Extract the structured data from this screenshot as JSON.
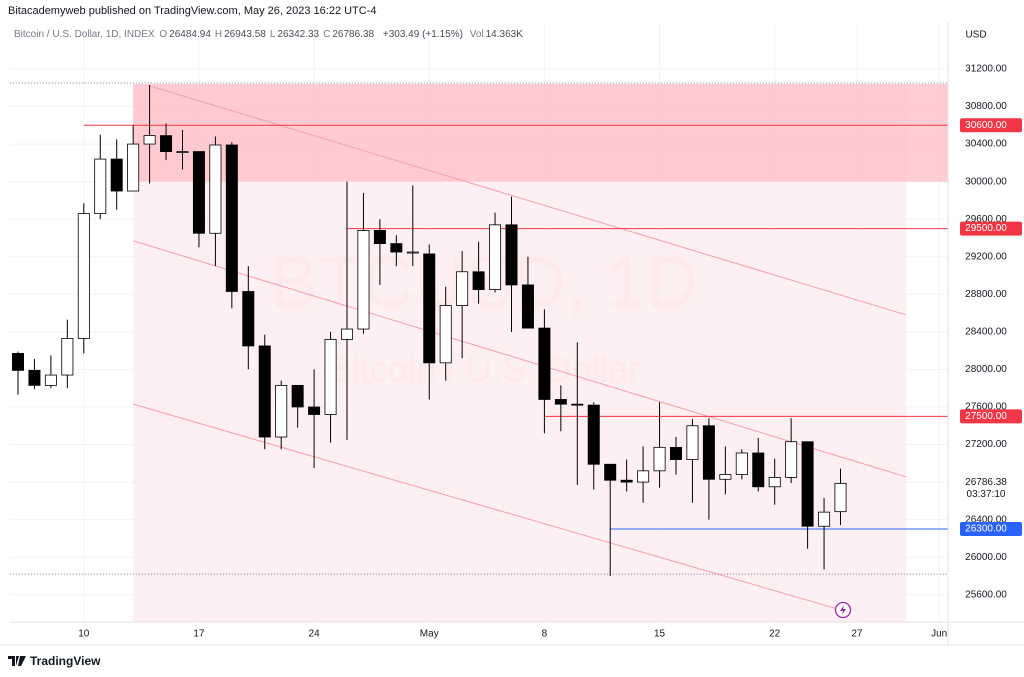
{
  "header": {
    "published": "Bitacademyweb published on TradingView.com, May 26, 2023 16:22 UTC-4"
  },
  "legend": {
    "symbol": "Bitcoin / U.S. Dollar, 1D, INDEX",
    "items": [
      {
        "key": "O",
        "value": "26484.94"
      },
      {
        "key": "H",
        "value": "26943.58"
      },
      {
        "key": "L",
        "value": "26342.33"
      },
      {
        "key": "C",
        "value": "26786.38"
      }
    ],
    "change": "+303.49 (+1.15%)",
    "volume": {
      "key": "Vol",
      "value": "14.363K"
    }
  },
  "footer": {
    "brand": "TradingView"
  },
  "chart_data": {
    "type": "candlestick",
    "watermark": {
      "title": "BTCUSD, 1D",
      "subtitle": "Bitcoin / U.S. Dollar"
    },
    "currency": "USD",
    "categories": [
      null,
      null,
      null,
      null,
      "10",
      null,
      null,
      null,
      null,
      null,
      null,
      "17",
      null,
      null,
      null,
      null,
      null,
      null,
      "24",
      null,
      null,
      null,
      null,
      null,
      null,
      "May",
      null,
      null,
      null,
      null,
      null,
      null,
      "8",
      null,
      null,
      null,
      null,
      null,
      null,
      "15",
      null,
      null,
      null,
      null,
      null,
      null,
      "22",
      null,
      null,
      null,
      null,
      "27",
      null,
      null,
      null,
      null,
      "Jun"
    ],
    "open": [
      28170,
      27990,
      27830,
      27940,
      28330,
      29660,
      30240,
      29900,
      30400,
      30490,
      30320,
      30320,
      29450,
      30390,
      28830,
      28250,
      27280,
      27830,
      27600,
      27520,
      28320,
      28430,
      29480,
      29340,
      29250,
      29230,
      28070,
      28680,
      29040,
      28850,
      29540,
      28900,
      28440,
      27680,
      27630,
      27620,
      26990,
      26820,
      26800,
      26920,
      27170,
      27040,
      27400,
      26830,
      26880,
      27110,
      26750,
      26850,
      27230,
      26330,
      26484.94,
      null,
      null,
      null,
      null,
      null,
      null
    ],
    "high": [
      28190,
      28110,
      28150,
      28530,
      29770,
      30500,
      30450,
      30600,
      31030,
      30620,
      30550,
      30320,
      30480,
      30420,
      29100,
      28370,
      27880,
      27830,
      28000,
      28400,
      30000,
      29880,
      29600,
      29430,
      29960,
      29330,
      28880,
      29260,
      29360,
      29670,
      29840,
      29200,
      28640,
      27830,
      28290,
      27650,
      26990,
      27040,
      27180,
      27650,
      27280,
      27470,
      27480,
      27180,
      27150,
      27270,
      27050,
      27480,
      27230,
      26630,
      26943.58,
      null,
      null,
      null,
      null,
      null,
      null
    ],
    "low": [
      27730,
      27790,
      27800,
      27800,
      28170,
      29600,
      29700,
      29900,
      29980,
      30230,
      30130,
      29300,
      29100,
      28650,
      28000,
      27150,
      27150,
      27380,
      26950,
      27220,
      27250,
      28380,
      28900,
      29100,
      29100,
      27680,
      27880,
      28120,
      28700,
      28820,
      28400,
      28500,
      27320,
      27340,
      26770,
      26720,
      25800,
      26700,
      26580,
      26740,
      26880,
      26580,
      26400,
      26670,
      26830,
      26700,
      26560,
      26790,
      26090,
      25870,
      26342.33,
      null,
      null,
      null,
      null,
      null,
      null
    ],
    "close": [
      27990,
      27830,
      27940,
      28330,
      29660,
      30240,
      29900,
      30400,
      30490,
      30320,
      30320,
      29450,
      30390,
      28830,
      28250,
      27280,
      27830,
      27600,
      27520,
      28320,
      28430,
      29480,
      29340,
      29250,
      29250,
      28070,
      28680,
      29040,
      28850,
      29540,
      28900,
      28440,
      27680,
      27630,
      27620,
      26990,
      26820,
      26800,
      26920,
      27170,
      27040,
      27400,
      26830,
      26880,
      27110,
      26750,
      26850,
      27230,
      26330,
      26480,
      26786.38,
      null,
      null,
      null,
      null,
      null,
      null
    ],
    "up_color": "#ffffff",
    "down_color": "#000000",
    "wick_color": "#000000",
    "ylim": [
      25310,
      31700
    ],
    "yticks": [
      {
        "value": 25600,
        "label": "25600.00"
      },
      {
        "value": 26000,
        "label": "26000.00"
      },
      {
        "value": 26400,
        "label": "26400.00"
      },
      {
        "value": 26800,
        "label": "26800.00"
      },
      {
        "value": 27200,
        "label": "27200.00"
      },
      {
        "value": 27600,
        "label": "27600.00"
      },
      {
        "value": 28000,
        "label": "28000.00"
      },
      {
        "value": 28400,
        "label": "28400.00"
      },
      {
        "value": 28800,
        "label": "28800.00"
      },
      {
        "value": 29200,
        "label": "29200.00"
      },
      {
        "value": 29600,
        "label": "29600.00"
      },
      {
        "value": 30000,
        "label": "30000.00"
      },
      {
        "value": 30400,
        "label": "30400.00"
      },
      {
        "value": 30800,
        "label": "30800.00"
      },
      {
        "value": 31200,
        "label": "31200.00"
      }
    ],
    "grid": true,
    "last_price": {
      "value": 26786.38,
      "label": "26786.38",
      "countdown": "03:37:10"
    },
    "hlines": [
      {
        "value": 30600,
        "label": "30600.00",
        "from": 4,
        "color": "#f23645"
      },
      {
        "value": 29500,
        "label": "29500.00",
        "from": 20,
        "color": "#f23645"
      },
      {
        "value": 27500,
        "label": "27500.00",
        "from": 32,
        "color": "#f23645"
      },
      {
        "value": 26300,
        "label": "26300.00",
        "from": 36,
        "color": "#2962ff"
      }
    ],
    "zone": {
      "ylim": [
        30000,
        31040
      ],
      "from": 7,
      "color": "#ffc1c7"
    },
    "channel": {
      "from": 7,
      "to": 54,
      "fill": "#fdebed",
      "color": "#f7a1ab",
      "lines": [
        [
          [
            8,
            31020
          ],
          [
            54,
            28580
          ]
        ],
        [
          [
            7,
            29370
          ],
          [
            54,
            26855
          ]
        ],
        [
          [
            7,
            27630
          ],
          [
            50,
            25440
          ]
        ]
      ]
    },
    "dotted": [
      31050,
      25820
    ]
  }
}
